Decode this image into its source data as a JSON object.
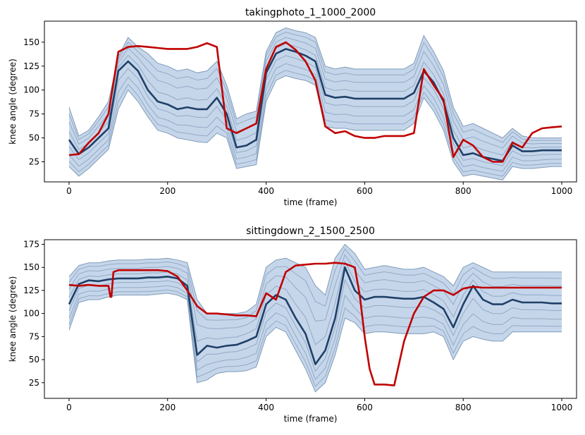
{
  "chart_data": [
    {
      "type": "line",
      "title": "takingphoto_1_1000_2000",
      "xlabel": "time (frame)",
      "ylabel": "knee angle (degree)",
      "xlim": [
        -50,
        1030
      ],
      "ylim": [
        4,
        172
      ],
      "xticks": [
        0,
        200,
        400,
        600,
        800,
        1000
      ],
      "yticks": [
        25,
        50,
        75,
        100,
        125,
        150
      ],
      "band_color": "#c6d6ea",
      "band_edge_color": "#7f9bb9",
      "pred_color": "#1f4068",
      "gt_color": "#c00000",
      "series": [
        {
          "name": "upper-bound",
          "x": [
            0,
            20,
            40,
            60,
            80,
            100,
            120,
            140,
            160,
            180,
            200,
            220,
            240,
            260,
            280,
            300,
            320,
            340,
            360,
            380,
            400,
            420,
            440,
            460,
            480,
            500,
            520,
            540,
            560,
            580,
            600,
            620,
            640,
            660,
            680,
            700,
            720,
            740,
            760,
            780,
            800,
            820,
            840,
            860,
            880,
            900,
            920,
            940,
            960,
            980,
            1000
          ],
          "values": [
            82,
            52,
            58,
            72,
            88,
            135,
            155,
            145,
            138,
            128,
            125,
            120,
            122,
            118,
            120,
            130,
            105,
            70,
            75,
            78,
            140,
            160,
            165,
            162,
            160,
            155,
            125,
            122,
            124,
            122,
            122,
            122,
            122,
            122,
            122,
            128,
            157,
            140,
            120,
            82,
            62,
            65,
            60,
            55,
            50,
            60,
            52,
            50,
            50,
            50,
            50
          ]
        },
        {
          "name": "lower-bound",
          "x": [
            0,
            20,
            40,
            60,
            80,
            100,
            120,
            140,
            160,
            180,
            200,
            220,
            240,
            260,
            280,
            300,
            320,
            340,
            360,
            380,
            400,
            420,
            440,
            460,
            480,
            500,
            520,
            540,
            560,
            580,
            600,
            620,
            640,
            660,
            680,
            700,
            720,
            740,
            760,
            780,
            800,
            820,
            840,
            860,
            880,
            900,
            920,
            940,
            960,
            980,
            1000
          ],
          "values": [
            20,
            10,
            18,
            28,
            38,
            80,
            100,
            88,
            72,
            58,
            55,
            50,
            48,
            46,
            45,
            55,
            50,
            18,
            20,
            22,
            88,
            110,
            115,
            112,
            110,
            105,
            62,
            60,
            60,
            58,
            58,
            58,
            58,
            58,
            58,
            65,
            92,
            78,
            58,
            25,
            10,
            12,
            10,
            8,
            6,
            20,
            18,
            18,
            19,
            20,
            20
          ]
        },
        {
          "name": "prediction-mean",
          "x": [
            0,
            20,
            40,
            60,
            80,
            100,
            120,
            140,
            160,
            180,
            200,
            220,
            240,
            260,
            280,
            300,
            320,
            340,
            360,
            380,
            400,
            420,
            440,
            460,
            480,
            500,
            520,
            540,
            560,
            580,
            600,
            620,
            640,
            660,
            680,
            700,
            720,
            740,
            760,
            780,
            800,
            820,
            840,
            860,
            880,
            900,
            920,
            940,
            960,
            980,
            1000
          ],
          "values": [
            48,
            33,
            40,
            50,
            60,
            120,
            130,
            120,
            100,
            88,
            85,
            80,
            82,
            80,
            80,
            92,
            75,
            40,
            42,
            48,
            118,
            138,
            143,
            140,
            136,
            130,
            95,
            92,
            93,
            91,
            91,
            91,
            91,
            91,
            91,
            97,
            120,
            108,
            88,
            50,
            32,
            34,
            30,
            28,
            26,
            42,
            36,
            36,
            37,
            37,
            37
          ]
        },
        {
          "name": "ground-truth",
          "x": [
            0,
            20,
            40,
            60,
            80,
            100,
            120,
            140,
            160,
            180,
            200,
            220,
            240,
            260,
            280,
            300,
            320,
            340,
            360,
            380,
            400,
            420,
            440,
            460,
            480,
            500,
            520,
            540,
            560,
            580,
            600,
            620,
            640,
            660,
            680,
            700,
            720,
            740,
            760,
            780,
            800,
            820,
            840,
            860,
            880,
            900,
            920,
            940,
            960,
            980,
            1000
          ],
          "values": [
            32,
            33,
            45,
            55,
            75,
            140,
            145,
            146,
            145,
            144,
            143,
            143,
            143,
            145,
            149,
            145,
            60,
            55,
            60,
            65,
            122,
            145,
            150,
            142,
            130,
            110,
            62,
            55,
            57,
            52,
            50,
            50,
            52,
            52,
            52,
            55,
            122,
            105,
            90,
            30,
            48,
            42,
            30,
            25,
            25,
            45,
            40,
            55,
            60,
            61,
            62
          ]
        }
      ]
    },
    {
      "type": "line",
      "title": "sittingdown_2_1500_2500",
      "xlabel": "time (frame)",
      "ylabel": "knee angle (degree)",
      "xlim": [
        -50,
        1030
      ],
      "ylim": [
        8,
        180
      ],
      "xticks": [
        0,
        200,
        400,
        600,
        800,
        1000
      ],
      "yticks": [
        25,
        50,
        75,
        100,
        125,
        150,
        175
      ],
      "band_color": "#c6d6ea",
      "band_edge_color": "#7f9bb9",
      "pred_color": "#1f4068",
      "gt_color": "#c00000",
      "series": [
        {
          "name": "upper-bound",
          "x": [
            0,
            20,
            40,
            60,
            80,
            100,
            120,
            140,
            160,
            180,
            200,
            220,
            240,
            260,
            280,
            300,
            320,
            340,
            360,
            380,
            400,
            420,
            440,
            460,
            480,
            500,
            520,
            540,
            560,
            580,
            600,
            620,
            640,
            660,
            680,
            700,
            720,
            740,
            760,
            780,
            800,
            820,
            840,
            860,
            880,
            900,
            920,
            940,
            960,
            980,
            1000
          ],
          "values": [
            140,
            152,
            155,
            155,
            157,
            158,
            158,
            158,
            159,
            159,
            160,
            158,
            155,
            115,
            100,
            100,
            100,
            100,
            102,
            110,
            150,
            158,
            160,
            155,
            150,
            130,
            120,
            160,
            175,
            165,
            148,
            150,
            152,
            150,
            148,
            148,
            150,
            145,
            140,
            130,
            150,
            155,
            150,
            145,
            145,
            145,
            145,
            145,
            145,
            145,
            145
          ]
        },
        {
          "name": "lower-bound",
          "x": [
            0,
            20,
            40,
            60,
            80,
            100,
            120,
            140,
            160,
            180,
            200,
            220,
            240,
            260,
            280,
            300,
            320,
            340,
            360,
            380,
            400,
            420,
            440,
            460,
            480,
            500,
            520,
            540,
            560,
            580,
            600,
            620,
            640,
            660,
            680,
            700,
            720,
            740,
            760,
            780,
            800,
            820,
            840,
            860,
            880,
            900,
            920,
            940,
            960,
            980,
            1000
          ],
          "values": [
            82,
            112,
            115,
            115,
            118,
            120,
            120,
            120,
            120,
            121,
            122,
            120,
            115,
            25,
            28,
            35,
            37,
            37,
            38,
            42,
            75,
            85,
            80,
            60,
            40,
            15,
            25,
            55,
            95,
            90,
            78,
            80,
            80,
            79,
            78,
            78,
            78,
            80,
            75,
            50,
            70,
            75,
            72,
            70,
            70,
            80,
            80,
            80,
            80,
            80,
            80
          ]
        },
        {
          "name": "prediction-mean",
          "x": [
            0,
            20,
            40,
            60,
            80,
            100,
            120,
            140,
            160,
            180,
            200,
            220,
            240,
            260,
            280,
            300,
            320,
            340,
            360,
            380,
            400,
            420,
            440,
            460,
            480,
            500,
            520,
            540,
            560,
            580,
            600,
            620,
            640,
            660,
            680,
            700,
            720,
            740,
            760,
            780,
            800,
            820,
            840,
            860,
            880,
            900,
            920,
            940,
            960,
            980,
            1000
          ],
          "values": [
            110,
            132,
            136,
            135,
            137,
            138,
            138,
            138,
            139,
            139,
            140,
            138,
            130,
            55,
            65,
            63,
            65,
            66,
            70,
            75,
            110,
            120,
            115,
            95,
            78,
            45,
            60,
            95,
            150,
            125,
            115,
            118,
            118,
            117,
            116,
            116,
            118,
            112,
            105,
            85,
            110,
            130,
            115,
            110,
            110,
            115,
            112,
            112,
            112,
            111,
            111
          ]
        },
        {
          "name": "ground-truth",
          "x": [
            0,
            20,
            40,
            60,
            80,
            84,
            86,
            90,
            100,
            120,
            140,
            160,
            180,
            200,
            220,
            240,
            260,
            280,
            300,
            320,
            340,
            360,
            380,
            400,
            420,
            440,
            460,
            480,
            500,
            520,
            540,
            560,
            580,
            590,
            600,
            610,
            620,
            640,
            660,
            680,
            700,
            720,
            740,
            760,
            780,
            800,
            820,
            840,
            860,
            880,
            900,
            920,
            940,
            960,
            980,
            1000
          ],
          "values": [
            131,
            130,
            131,
            130,
            130,
            118,
            118,
            145,
            147,
            147,
            147,
            147,
            147,
            146,
            140,
            125,
            108,
            100,
            100,
            99,
            98,
            98,
            97,
            122,
            115,
            145,
            152,
            153,
            154,
            154,
            155,
            154,
            150,
            120,
            75,
            40,
            23,
            23,
            22,
            70,
            100,
            118,
            125,
            125,
            120,
            127,
            129,
            128,
            128,
            128,
            128,
            128,
            128,
            128,
            128,
            128
          ]
        }
      ]
    }
  ]
}
